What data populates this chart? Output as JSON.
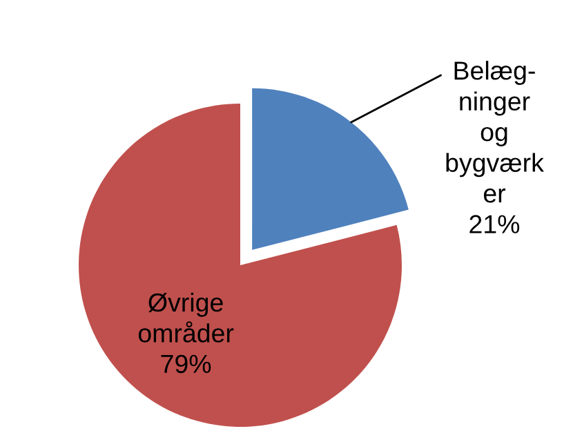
{
  "chart_data": {
    "type": "pie",
    "categories": [
      "Belæg-\nninger\nog\nbygværk\ner",
      "Øvrige\nområder"
    ],
    "values": [
      21,
      79
    ],
    "colors": [
      "#4f81bd",
      "#c0504d"
    ],
    "value_labels": [
      "21%",
      "79%"
    ],
    "legend": false
  }
}
